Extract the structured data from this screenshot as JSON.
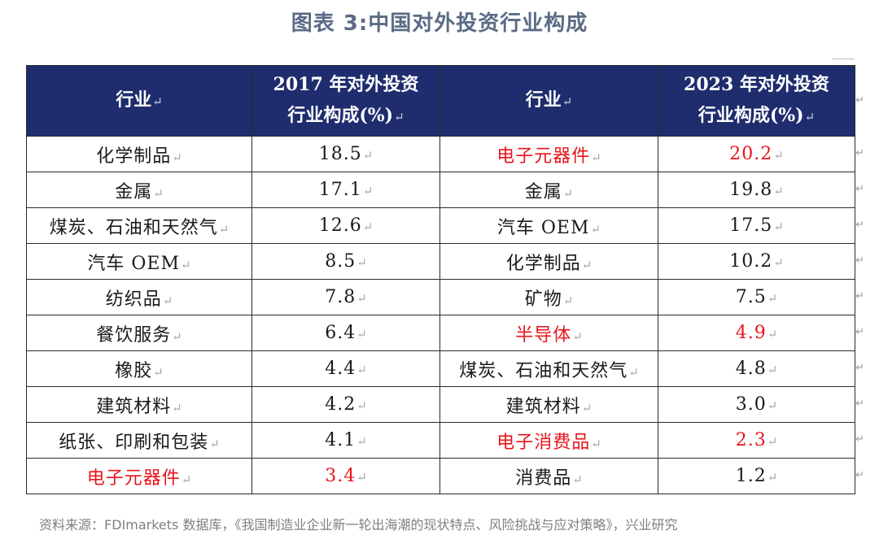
{
  "title": "图表 3:中国对外投资行业构成",
  "return_mark": "↵",
  "headers": {
    "industry_left": "行业",
    "share_2017_line1": "2017 年对外投资",
    "share_2017_line2": "行业构成(%)",
    "industry_right": "行业",
    "share_2023_line1": "2023 年对外投资",
    "share_2023_line2": "行业构成(%)"
  },
  "rows": [
    {
      "industry_2017": "化学制品",
      "value_2017": "18.5",
      "industry_2023": "电子元器件",
      "value_2023": "20.2"
    },
    {
      "industry_2017": "金属",
      "value_2017": "17.1",
      "industry_2023": "金属",
      "value_2023": "19.8"
    },
    {
      "industry_2017": "煤炭、石油和天然气",
      "value_2017": "12.6",
      "industry_2023": "汽车 OEM",
      "value_2023": "17.5"
    },
    {
      "industry_2017": "汽车 OEM",
      "value_2017": "8.5",
      "industry_2023": "化学制品",
      "value_2023": "10.2"
    },
    {
      "industry_2017": "纺织品",
      "value_2017": "7.8",
      "industry_2023": "矿物",
      "value_2023": "7.5"
    },
    {
      "industry_2017": "餐饮服务",
      "value_2017": "6.4",
      "industry_2023": "半导体",
      "value_2023": "4.9"
    },
    {
      "industry_2017": "橡胶",
      "value_2017": "4.4",
      "industry_2023": "煤炭、石油和天然气",
      "value_2023": "4.8"
    },
    {
      "industry_2017": "建筑材料",
      "value_2017": "4.2",
      "industry_2023": "建筑材料",
      "value_2023": "3.0"
    },
    {
      "industry_2017": "纸张、印刷和包装",
      "value_2017": "4.1",
      "industry_2023": "电子消费品",
      "value_2023": "2.3"
    },
    {
      "industry_2017": "电子元器件",
      "value_2017": "3.4",
      "industry_2023": "消费品",
      "value_2023": "1.2"
    }
  ],
  "highlight_color": "#e8141b",
  "header_color": "#1f2d6e",
  "source": "资料来源：FDImarkets 数据库，《我国制造业企业新一轮出海潮的现状特点、风险挑战与应对策略》，兴业研究"
}
